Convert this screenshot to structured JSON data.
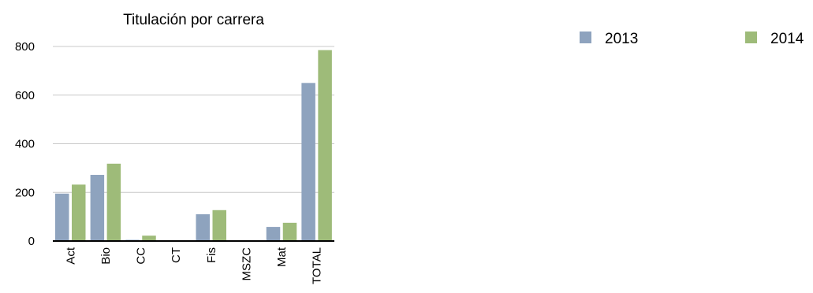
{
  "chart_data": {
    "type": "bar",
    "title": "Titulación por carrera",
    "xlabel": "",
    "ylabel": "",
    "categories": [
      "Act",
      "Bio",
      "CC",
      "CT",
      "Fis",
      "MSZC",
      "Mat",
      "TOTAL"
    ],
    "series": [
      {
        "name": "2013",
        "color": "#8ea3be",
        "values": [
          195,
          272,
          5,
          0,
          110,
          0,
          58,
          650
        ]
      },
      {
        "name": "2014",
        "color": "#9ebb79",
        "values": [
          232,
          318,
          22,
          0,
          127,
          0,
          75,
          785
        ]
      }
    ],
    "yticks": [
      0,
      200,
      400,
      600,
      800
    ],
    "ylim": [
      0,
      800
    ],
    "grid": true,
    "legend_position": "top-right"
  }
}
